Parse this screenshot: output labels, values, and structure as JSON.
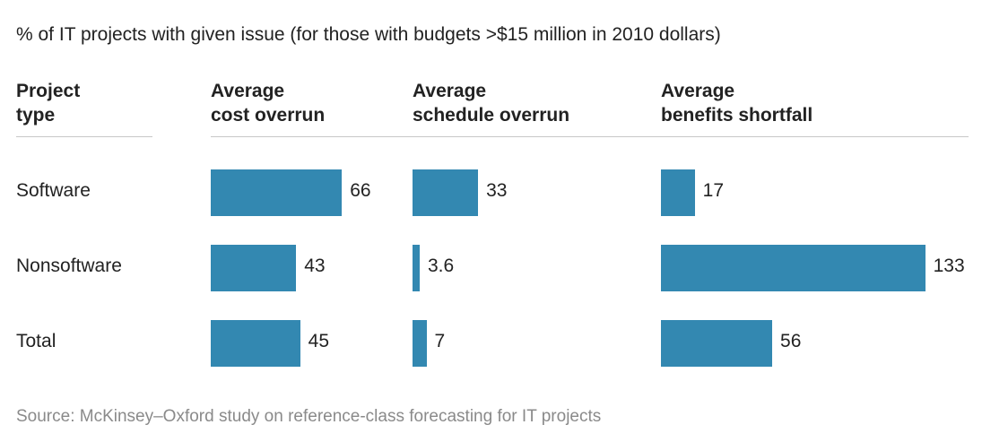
{
  "title": "% of IT projects with given issue (for those with budgets >$15 million in 2010 dollars)",
  "source": "Source: McKinsey–Oxford study on reference-class forecasting for IT projects",
  "colors": {
    "bar": "#3388b1",
    "rule": "#c8c8c8"
  },
  "chart_data": {
    "type": "bar",
    "orientation": "horizontal",
    "row_header": [
      "Project",
      "type"
    ],
    "categories": [
      "Software",
      "Nonsoftware",
      "Total"
    ],
    "series": [
      {
        "header": [
          "Average",
          "cost overrun"
        ],
        "values": [
          66,
          43,
          45
        ],
        "labels": [
          "66",
          "43",
          "45"
        ]
      },
      {
        "header": [
          "Average",
          "schedule overrun"
        ],
        "values": [
          33,
          3.6,
          7
        ],
        "labels": [
          "33",
          "3.6",
          "7"
        ]
      },
      {
        "header": [
          "Average",
          "benefits shortfall"
        ],
        "values": [
          17,
          133,
          56
        ],
        "labels": [
          "17",
          "133",
          "56"
        ]
      }
    ]
  }
}
